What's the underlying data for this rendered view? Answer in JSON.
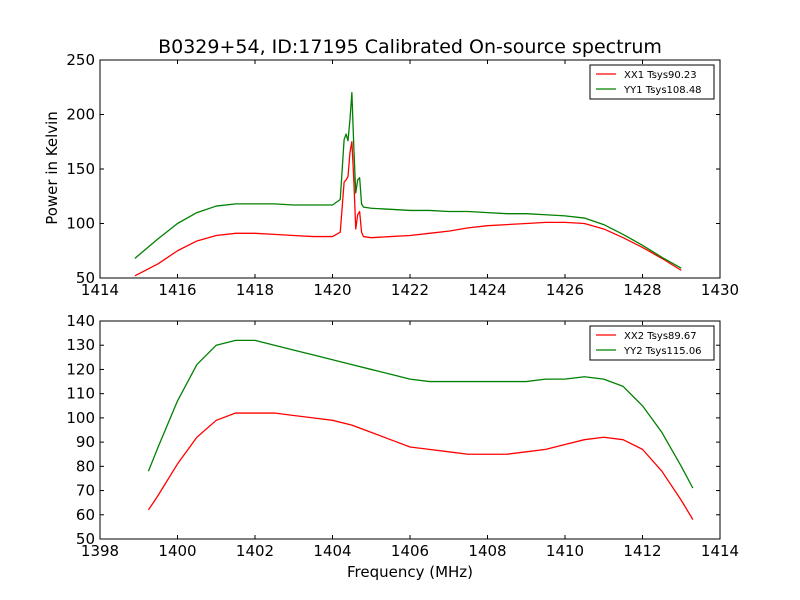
{
  "chart_data": [
    {
      "type": "line",
      "title": "B0329+54, ID:17195 Calibrated On-source spectrum",
      "xlabel": "",
      "ylabel": "Power in Kelvin",
      "xlim": [
        1414,
        1430
      ],
      "ylim": [
        50,
        250
      ],
      "xticks": [
        1414,
        1416,
        1418,
        1420,
        1422,
        1424,
        1426,
        1428,
        1430
      ],
      "yticks": [
        50,
        100,
        150,
        200,
        250
      ],
      "grid": false,
      "legend_position": "top-right",
      "series": [
        {
          "name": "XX1 Tsys90.23",
          "color": "#ff0000",
          "x": [
            1414.9,
            1415.5,
            1416.0,
            1416.5,
            1417.0,
            1417.5,
            1418.0,
            1418.5,
            1419.0,
            1419.5,
            1420.0,
            1420.2,
            1420.3,
            1420.35,
            1420.4,
            1420.45,
            1420.5,
            1420.55,
            1420.6,
            1420.65,
            1420.7,
            1420.75,
            1420.8,
            1421.0,
            1421.5,
            1422.0,
            1422.5,
            1423.0,
            1423.5,
            1424.0,
            1424.5,
            1425.0,
            1425.5,
            1426.0,
            1426.5,
            1427.0,
            1427.5,
            1428.0,
            1428.5,
            1429.0
          ],
          "values": [
            52,
            63,
            75,
            84,
            89,
            91,
            91,
            90,
            89,
            88,
            88,
            92,
            138,
            140,
            143,
            165,
            175,
            140,
            95,
            108,
            111,
            92,
            88,
            87,
            88,
            89,
            91,
            93,
            96,
            98,
            99,
            100,
            101,
            101,
            100,
            95,
            87,
            78,
            68,
            57
          ]
        },
        {
          "name": "YY1 Tsys108.48",
          "color": "#008000",
          "x": [
            1414.9,
            1415.5,
            1416.0,
            1416.5,
            1417.0,
            1417.5,
            1418.0,
            1418.5,
            1419.0,
            1419.5,
            1420.0,
            1420.2,
            1420.3,
            1420.35,
            1420.4,
            1420.45,
            1420.5,
            1420.55,
            1420.6,
            1420.65,
            1420.7,
            1420.75,
            1420.8,
            1421.0,
            1421.5,
            1422.0,
            1422.5,
            1423.0,
            1423.5,
            1424.0,
            1424.5,
            1425.0,
            1425.5,
            1426.0,
            1426.5,
            1427.0,
            1427.5,
            1428.0,
            1428.5,
            1429.0
          ],
          "values": [
            68,
            86,
            100,
            110,
            116,
            118,
            118,
            118,
            117,
            117,
            117,
            122,
            177,
            182,
            176,
            195,
            220,
            170,
            128,
            140,
            142,
            118,
            115,
            114,
            113,
            112,
            112,
            111,
            111,
            110,
            109,
            109,
            108,
            107,
            105,
            99,
            90,
            80,
            69,
            59
          ]
        }
      ]
    },
    {
      "type": "line",
      "title": "",
      "xlabel": "Frequency (MHz)",
      "ylabel": "",
      "xlim": [
        1398,
        1414
      ],
      "ylim": [
        50,
        140
      ],
      "xticks": [
        1398,
        1400,
        1402,
        1404,
        1406,
        1408,
        1410,
        1412,
        1414
      ],
      "yticks": [
        50,
        60,
        70,
        80,
        90,
        100,
        110,
        120,
        130,
        140
      ],
      "grid": false,
      "legend_position": "top-right",
      "series": [
        {
          "name": "XX2 Tsys89.67",
          "color": "#ff0000",
          "x": [
            1399.25,
            1399.5,
            1400.0,
            1400.5,
            1401.0,
            1401.5,
            1402.0,
            1402.5,
            1403.0,
            1403.5,
            1404.0,
            1404.5,
            1405.0,
            1405.5,
            1406.0,
            1406.5,
            1407.0,
            1407.5,
            1408.0,
            1408.5,
            1409.0,
            1409.5,
            1410.0,
            1410.5,
            1411.0,
            1411.5,
            1412.0,
            1412.5,
            1413.0,
            1413.3
          ],
          "values": [
            62,
            68,
            81,
            92,
            99,
            102,
            102,
            102,
            101,
            100,
            99,
            97,
            94,
            91,
            88,
            87,
            86,
            85,
            85,
            85,
            86,
            87,
            89,
            91,
            92,
            91,
            87,
            78,
            66,
            58
          ]
        },
        {
          "name": "YY2 Tsys115.06",
          "color": "#008000",
          "x": [
            1399.25,
            1399.5,
            1400.0,
            1400.5,
            1401.0,
            1401.5,
            1402.0,
            1402.5,
            1403.0,
            1403.5,
            1404.0,
            1404.5,
            1405.0,
            1405.5,
            1406.0,
            1406.5,
            1407.0,
            1407.5,
            1408.0,
            1408.5,
            1409.0,
            1409.5,
            1410.0,
            1410.5,
            1411.0,
            1411.5,
            1412.0,
            1412.5,
            1413.0,
            1413.3
          ],
          "values": [
            78,
            88,
            107,
            122,
            130,
            132,
            132,
            130,
            128,
            126,
            124,
            122,
            120,
            118,
            116,
            115,
            115,
            115,
            115,
            115,
            115,
            116,
            116,
            117,
            116,
            113,
            105,
            94,
            80,
            71
          ]
        }
      ]
    }
  ]
}
